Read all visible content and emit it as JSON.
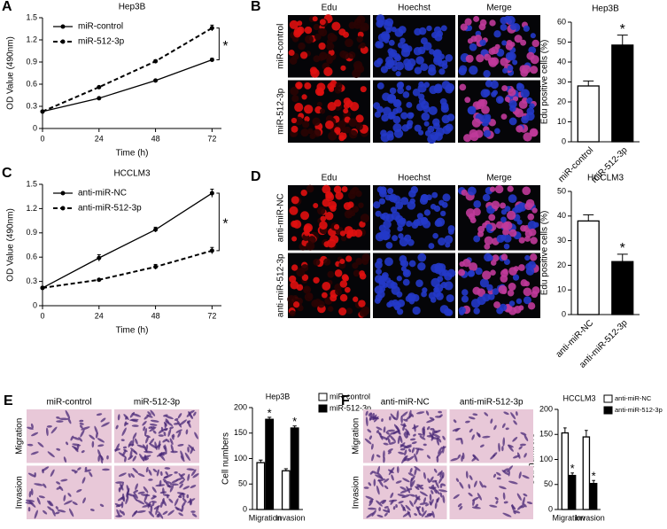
{
  "chart_data": [
    {
      "type": "line",
      "letter": "A",
      "title": "Hep3B",
      "xlabel": "Time (h)",
      "ylabel": "OD Value (490nm)",
      "x": [
        0,
        24,
        48,
        72
      ],
      "xlim": [
        0,
        76
      ],
      "xticks": [
        0,
        24,
        48,
        72
      ],
      "ylim": [
        0,
        1.5
      ],
      "yticks": [
        0,
        0.3,
        0.6,
        0.9,
        1.2,
        1.5
      ],
      "annotation": "*",
      "series": [
        {
          "name": "miR-control",
          "color": "#000000",
          "dash": false,
          "values": [
            0.23,
            0.41,
            0.65,
            0.93
          ],
          "errors": [
            0.01,
            0.01,
            0.01,
            0.02
          ]
        },
        {
          "name": "miR-512-3p",
          "color": "#000000",
          "dash": true,
          "values": [
            0.23,
            0.56,
            0.91,
            1.36
          ],
          "errors": [
            0.01,
            0.01,
            0.02,
            0.04
          ]
        }
      ]
    },
    {
      "type": "bar",
      "title": "Hep3B",
      "ylabel": "Edu positive cells (%)",
      "categories": [
        "miR-control",
        "miR-512-3p"
      ],
      "values": [
        28,
        48.5
      ],
      "errors": [
        2.5,
        5
      ],
      "colors": [
        "#ffffff",
        "#000000"
      ],
      "ylim": [
        0,
        60
      ],
      "yticks": [
        0,
        10,
        20,
        30,
        40,
        50,
        60
      ],
      "annotation": "*"
    },
    {
      "type": "line",
      "letter": "C",
      "title": "HCCLM3",
      "xlabel": "Time (h)",
      "ylabel": "OD Value (490nm)",
      "x": [
        0,
        24,
        48,
        72
      ],
      "xlim": [
        0,
        76
      ],
      "xticks": [
        0,
        24,
        48,
        72
      ],
      "ylim": [
        0,
        1.5
      ],
      "yticks": [
        0,
        0.3,
        0.6,
        0.9,
        1.2,
        1.5
      ],
      "annotation": "*",
      "series": [
        {
          "name": "anti-miR-NC",
          "color": "#000000",
          "dash": false,
          "values": [
            0.22,
            0.59,
            0.94,
            1.39
          ],
          "errors": [
            0.01,
            0.04,
            0.03,
            0.05
          ]
        },
        {
          "name": "anti-miR-512-3p",
          "color": "#000000",
          "dash": true,
          "values": [
            0.22,
            0.32,
            0.48,
            0.68
          ],
          "errors": [
            0.01,
            0.01,
            0.03,
            0.04
          ]
        }
      ]
    },
    {
      "type": "bar",
      "title": "HCCLM3",
      "ylabel": "Edu positive cells (%)",
      "categories": [
        "anti-miR-NC",
        "anti-miR-512-3p"
      ],
      "values": [
        38,
        21.5
      ],
      "errors": [
        2.5,
        3
      ],
      "colors": [
        "#ffffff",
        "#000000"
      ],
      "ylim": [
        0,
        50
      ],
      "yticks": [
        0,
        10,
        20,
        30,
        40,
        50
      ],
      "annotation": "*"
    },
    {
      "type": "bar",
      "title": "Hep3B",
      "ylabel": "Cell numbers",
      "categories": [
        "Migration",
        "Invasion"
      ],
      "ylim": [
        0,
        200
      ],
      "yticks": [
        0,
        50,
        100,
        150,
        200
      ],
      "annotation": "*",
      "series": [
        {
          "name": "miR-control",
          "color": "#ffffff",
          "values": [
            92,
            76
          ],
          "errors": [
            5,
            4
          ]
        },
        {
          "name": "miR-512-3p",
          "color": "#000000",
          "values": [
            177,
            160
          ],
          "errors": [
            4,
            4
          ]
        }
      ]
    },
    {
      "type": "bar",
      "title": "HCCLM3",
      "ylabel": "Cell numbers",
      "categories": [
        "Migration",
        "Invasion"
      ],
      "ylim": [
        0,
        200
      ],
      "yticks": [
        0,
        50,
        100,
        150,
        200
      ],
      "annotation": "*",
      "series": [
        {
          "name": "anti-miR-NC",
          "color": "#ffffff",
          "values": [
            153,
            145
          ],
          "errors": [
            10,
            13
          ]
        },
        {
          "name": "anti-miR-512-3p",
          "color": "#000000",
          "values": [
            68,
            52
          ],
          "errors": [
            5,
            6
          ]
        }
      ]
    }
  ],
  "image_panels": [
    {
      "letter": "B",
      "kind": "fluorescence",
      "columns": [
        "Edu",
        "Hoechst",
        "Merge"
      ],
      "rows": [
        "miR-control",
        "miR-512-3p"
      ]
    },
    {
      "letter": "D",
      "kind": "fluorescence",
      "columns": [
        "Edu",
        "Hoechst",
        "Merge"
      ],
      "rows": [
        "anti-miR-NC",
        "anti-miR-512-3p"
      ]
    },
    {
      "letter": "E",
      "kind": "stain",
      "columns": [
        "miR-control",
        "miR-512-3p"
      ],
      "rows": [
        "Migration",
        "Invasion"
      ]
    },
    {
      "letter": "F",
      "kind": "stain",
      "columns": [
        "anti-miR-NC",
        "anti-miR-512-3p"
      ],
      "rows": [
        "Migration",
        "Invasion"
      ]
    }
  ]
}
